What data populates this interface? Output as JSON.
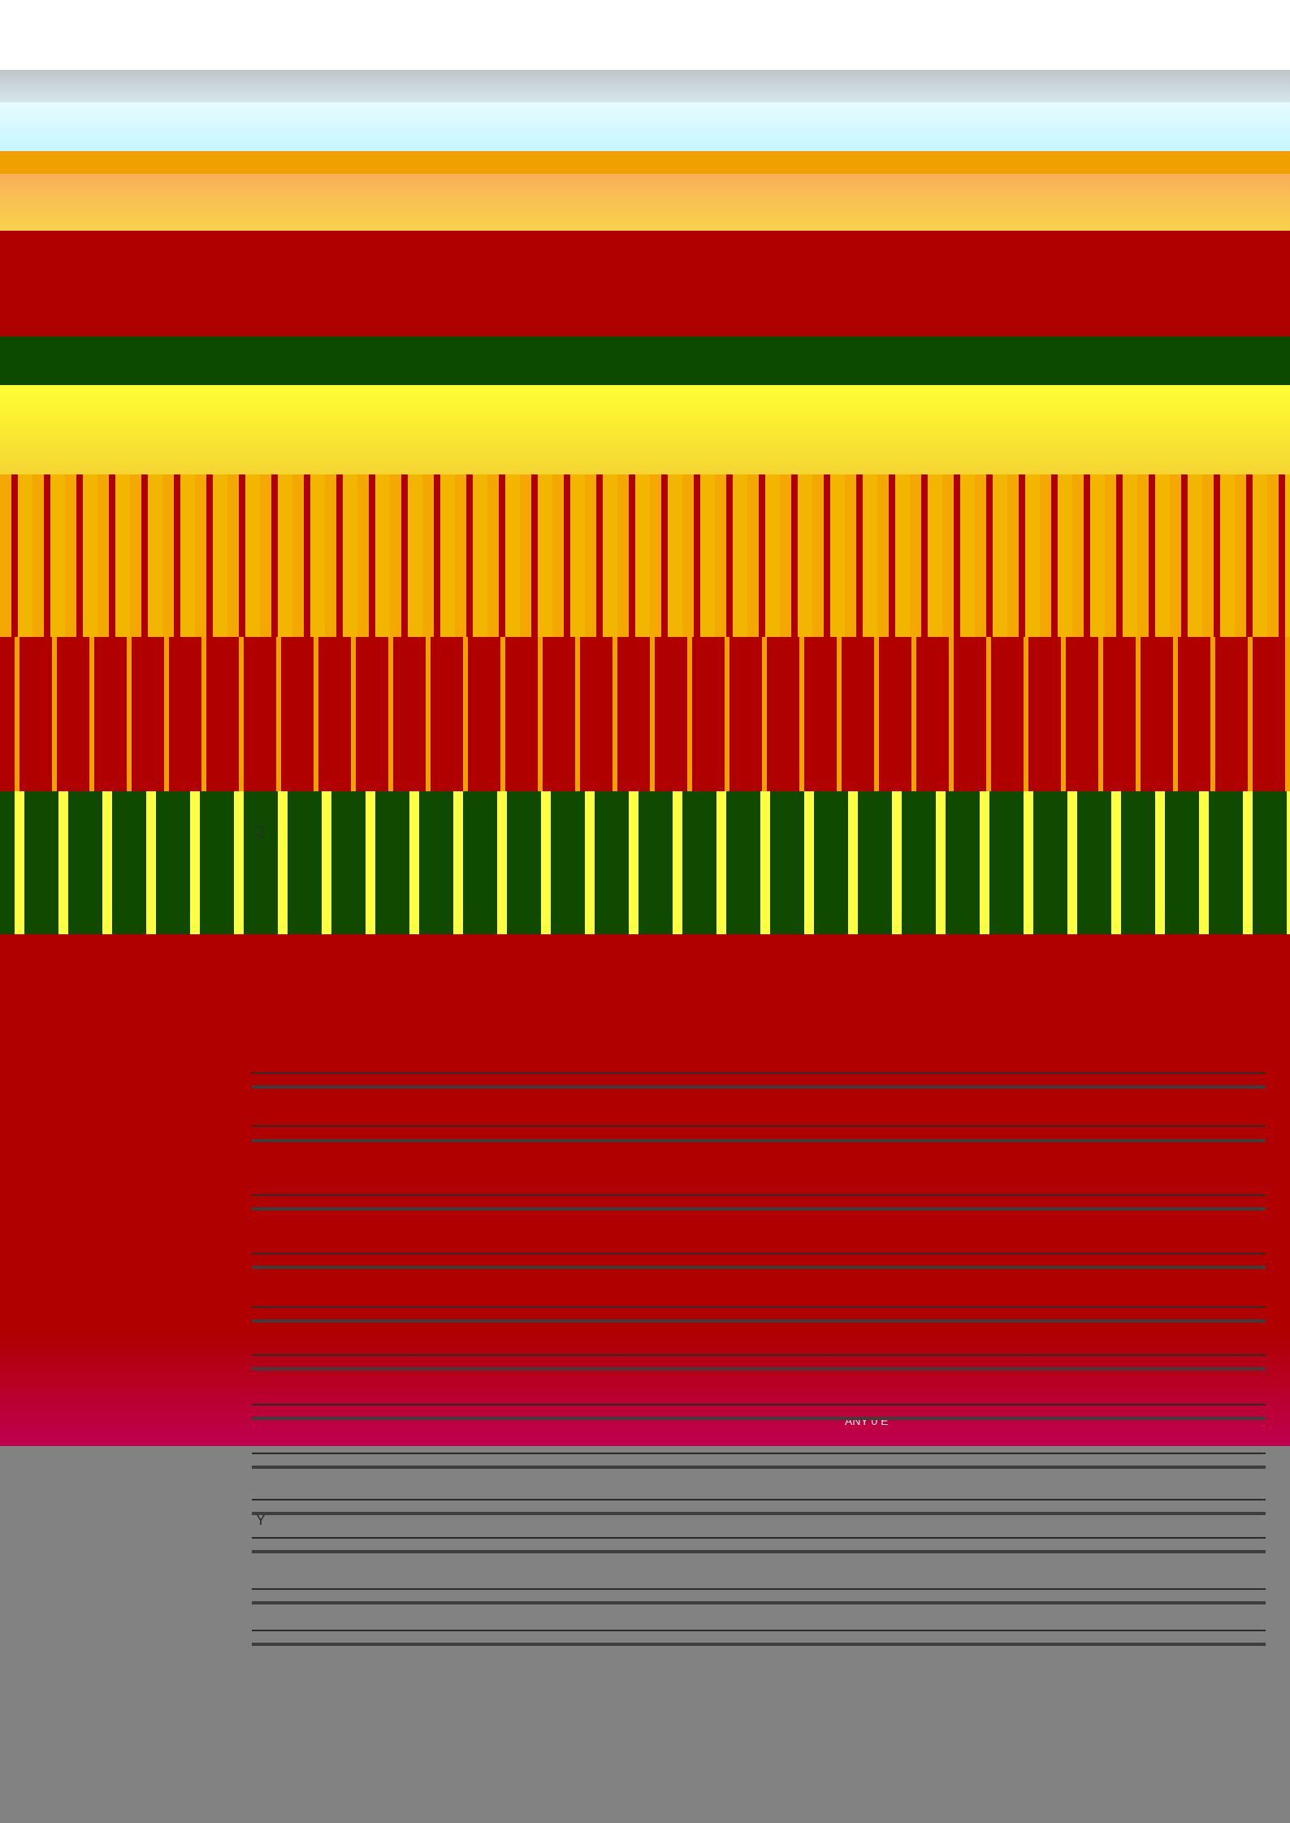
{
  "texts": {
    "label_a": "2",
    "label_b": "Y",
    "label_c": "ANY 0 E"
  }
}
